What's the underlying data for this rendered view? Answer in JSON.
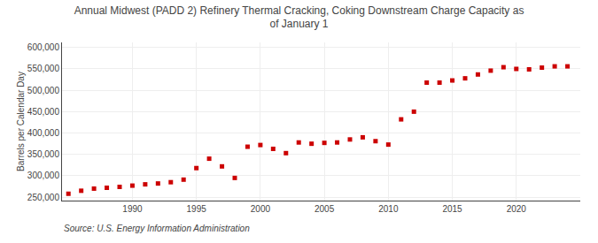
{
  "chart_data": {
    "type": "scatter",
    "title": "Annual Midwest (PADD 2) Refinery Thermal Cracking, Coking Downstream Charge Capacity as\nof January 1",
    "ylabel": "Barrels per Calendar Day",
    "annotations": [
      "Source: U.S. Energy Information Administration"
    ],
    "x": [
      1985,
      1986,
      1987,
      1988,
      1989,
      1990,
      1991,
      1992,
      1993,
      1994,
      1995,
      1996,
      1997,
      1998,
      1999,
      2000,
      2001,
      2002,
      2003,
      2004,
      2005,
      2006,
      2007,
      2008,
      2009,
      2010,
      2011,
      2012,
      2013,
      2014,
      2015,
      2016,
      2017,
      2018,
      2019,
      2020,
      2021,
      2022,
      2023,
      2024
    ],
    "values": [
      258000,
      265000,
      270000,
      272000,
      274000,
      277000,
      280000,
      282000,
      285000,
      291000,
      318000,
      340000,
      322000,
      295000,
      368000,
      372000,
      363000,
      353000,
      378000,
      375000,
      377000,
      378000,
      385000,
      390000,
      381000,
      373000,
      432000,
      450000,
      518000,
      518000,
      523000,
      528000,
      537000,
      546000,
      554000,
      550000,
      549000,
      553000,
      556000,
      556000
    ],
    "color": "#cc0000",
    "marker": "square",
    "xlim": [
      1984.5,
      2025
    ],
    "xticks": [
      1990,
      1995,
      2000,
      2005,
      2010,
      2015,
      2020
    ],
    "ylim": [
      242000,
      612000
    ],
    "yticks": [
      {
        "value": 250000,
        "label": "250,000"
      },
      {
        "value": 300000,
        "label": "300,000"
      },
      {
        "value": 350000,
        "label": "350,000"
      },
      {
        "value": 400000,
        "label": "400,000"
      },
      {
        "value": 450000,
        "label": "450,000"
      },
      {
        "value": 500000,
        "label": "500,000"
      },
      {
        "value": 550000,
        "label": "550,000"
      },
      {
        "value": 600000,
        "label": "600,000"
      }
    ],
    "grid": true
  }
}
